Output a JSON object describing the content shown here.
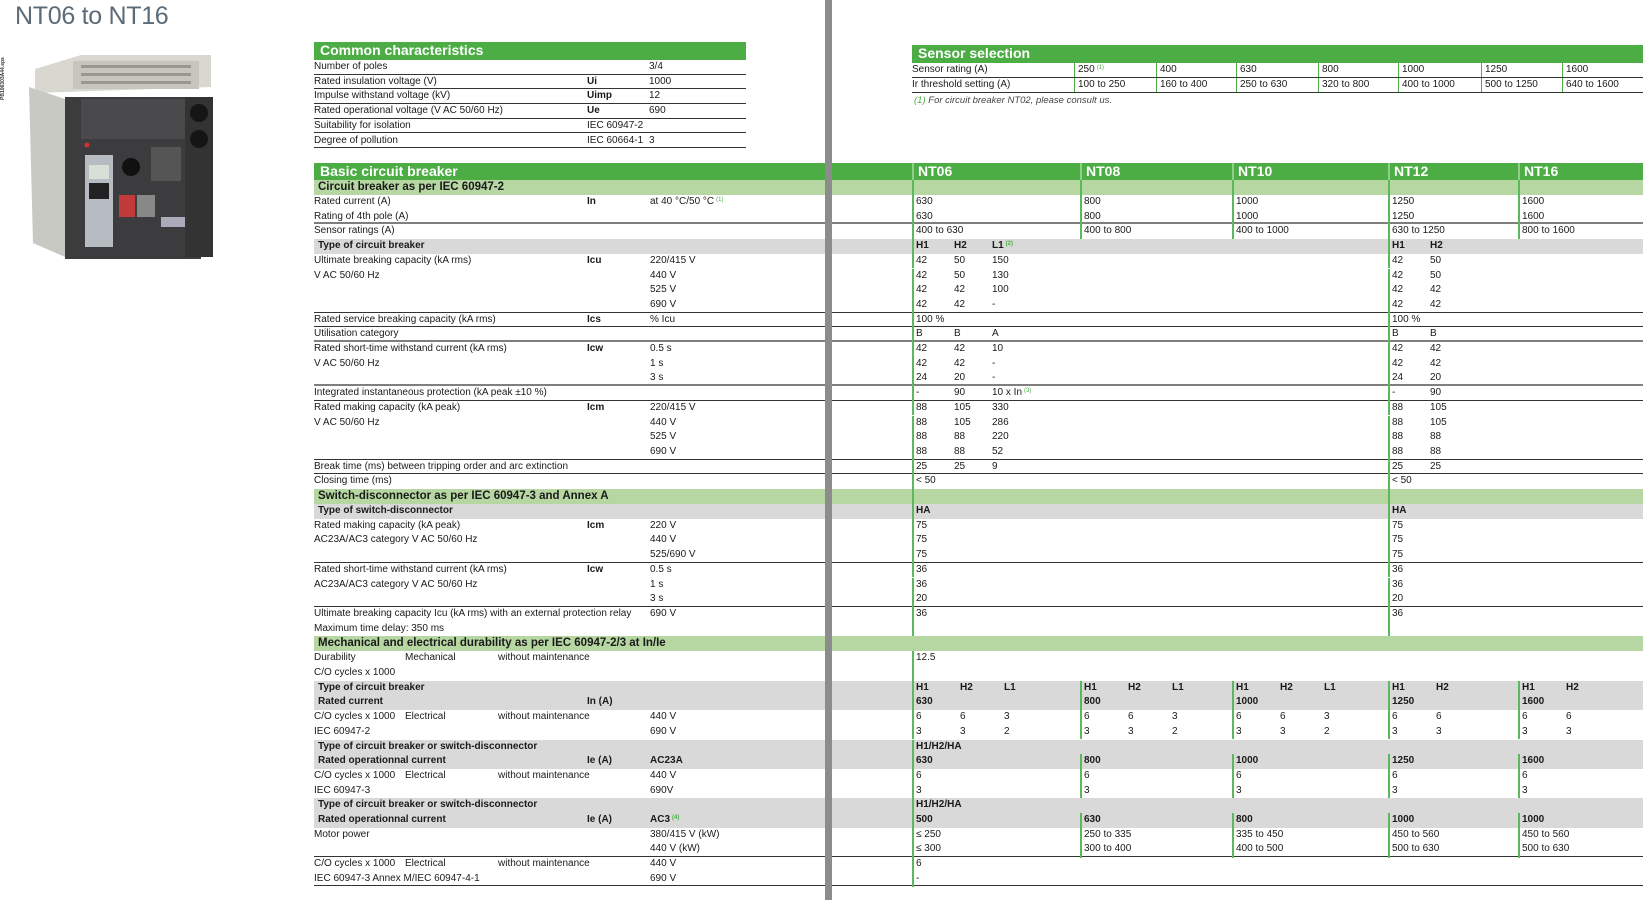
{
  "title": "NT06 to NT16",
  "photo_code": "PB106303A44.eps",
  "common": {
    "heading": "Common characteristics",
    "rows": [
      {
        "label": "Number of poles",
        "sym": "",
        "val": "3/4"
      },
      {
        "label": "Rated insulation voltage (V)",
        "sym": "Ui",
        "val": "1000"
      },
      {
        "label": "Impulse withstand voltage (kV)",
        "sym": "Uimp",
        "val": "12"
      },
      {
        "label": "Rated operational voltage (V AC 50/60 Hz)",
        "sym": "Ue",
        "val": "690"
      },
      {
        "label": "Suitability for isolation",
        "sym": "IEC 60947-2",
        "val": ""
      },
      {
        "label": "Degree of pollution",
        "sym": "IEC 60664-1",
        "val": "3"
      }
    ]
  },
  "sensor": {
    "heading": "Sensor selection",
    "rating_label": "Sensor rating (A)",
    "threshold_label": "Ir threshold setting (A)",
    "ratings": [
      {
        "t": "250",
        "sup": "(1)"
      },
      "400",
      "630",
      "800",
      "1000",
      "1250",
      "1600"
    ],
    "thresholds": [
      "100 to 250",
      "160 to 400",
      "250 to 630",
      "320 to 800",
      "400 to 1000",
      "500 to 1250",
      "640 to 1600"
    ],
    "footnote_ref": "(1)",
    "footnote": "For circuit breaker NT02, please consult us."
  },
  "colors": {
    "header_green": "#4cad44",
    "subheader_green": "#b6d7a2",
    "band_gray": "#d9d9d9",
    "gutter_gray": "#8c8c8c"
  },
  "rows": [
    {
      "k": "h",
      "c": {
        "label": "Basic circuit breaker"
      },
      "v": [
        [
          "NT06"
        ],
        [
          "NT08"
        ],
        [
          "NT10"
        ],
        [
          "NT12"
        ],
        [
          "NT16"
        ]
      ]
    },
    {
      "k": "s",
      "c": {
        "label": "Circuit breaker as per IEC 60947-2"
      },
      "v": [
        [],
        [],
        [],
        [],
        []
      ]
    },
    {
      "k": "d",
      "c": {
        "label": "Rated current (A)",
        "sym": "In",
        "cond": {
          "t": "at 40 °C/50 °C",
          "sup": "(1)"
        }
      },
      "v": [
        [
          "630"
        ],
        [
          "800"
        ],
        [
          "1000"
        ],
        [
          "1250"
        ],
        [
          "1600"
        ]
      ]
    },
    {
      "k": "d",
      "c": {
        "label": "Rating of 4th pole (A)"
      },
      "v": [
        [
          "630"
        ],
        [
          "800"
        ],
        [
          "1000"
        ],
        [
          "1250"
        ],
        [
          "1600"
        ]
      ],
      "r": "thick"
    },
    {
      "k": "d",
      "c": {
        "label": "Sensor ratings (A)"
      },
      "v": [
        [
          "400 to 630"
        ],
        [
          "400 to 800"
        ],
        [
          "400 to 1000"
        ],
        [
          "630 to 1250"
        ],
        [
          "800 to 1600"
        ]
      ]
    },
    {
      "k": "t",
      "c": {
        "label": "Type of circuit breaker"
      },
      "v": [
        [
          "H1",
          "H2",
          {
            "t": "L1",
            "sup": "(2)"
          }
        ],
        null,
        null,
        [
          "H1",
          "H2"
        ],
        null
      ]
    },
    {
      "k": "d",
      "c": {
        "label": "Ultimate breaking capacity (kA rms)",
        "sym": "Icu",
        "cond": "220/415 V"
      },
      "v": [
        [
          "42",
          "50",
          "150"
        ],
        null,
        null,
        [
          "42",
          "50"
        ],
        null
      ]
    },
    {
      "k": "d",
      "c": {
        "label": "V AC 50/60 Hz",
        "cond": "440 V"
      },
      "v": [
        [
          "42",
          "50",
          "130"
        ],
        null,
        null,
        [
          "42",
          "50"
        ],
        null
      ]
    },
    {
      "k": "d",
      "c": {
        "cond": "525 V"
      },
      "v": [
        [
          "42",
          "42",
          "100"
        ],
        null,
        null,
        [
          "42",
          "42"
        ],
        null
      ]
    },
    {
      "k": "d",
      "c": {
        "cond": "690 V"
      },
      "v": [
        [
          "42",
          "42",
          "-"
        ],
        null,
        null,
        [
          "42",
          "42"
        ],
        null
      ],
      "r": "thin"
    },
    {
      "k": "d",
      "c": {
        "label": "Rated service breaking capacity (kA rms)",
        "sym": "Ics",
        "cond": "% Icu"
      },
      "v": [
        [
          "100 %"
        ],
        null,
        null,
        [
          "100 %"
        ],
        null
      ],
      "r": "thin"
    },
    {
      "k": "d",
      "c": {
        "label": "Utilisation category"
      },
      "v": [
        [
          "B",
          "B",
          "A"
        ],
        null,
        null,
        [
          "B",
          "B"
        ],
        null
      ],
      "r": "thick"
    },
    {
      "k": "d",
      "c": {
        "label": "Rated short-time withstand current (kA rms)",
        "sym": "Icw",
        "cond": "0.5 s"
      },
      "v": [
        [
          "42",
          "42",
          "10"
        ],
        null,
        null,
        [
          "42",
          "42"
        ],
        null
      ]
    },
    {
      "k": "d",
      "c": {
        "label": "V AC 50/60 Hz",
        "cond": "1 s"
      },
      "v": [
        [
          "42",
          "42",
          "-"
        ],
        null,
        null,
        [
          "42",
          "42"
        ],
        null
      ]
    },
    {
      "k": "d",
      "c": {
        "cond": "3 s"
      },
      "v": [
        [
          "24",
          "20",
          "-"
        ],
        null,
        null,
        [
          "24",
          "20"
        ],
        null
      ],
      "r": "thick"
    },
    {
      "k": "d",
      "c": {
        "label": "Integrated instantaneous protection (kA peak ±10 %)"
      },
      "v": [
        [
          "-",
          "90",
          {
            "t": "10 x In",
            "sup": "(3)"
          }
        ],
        null,
        null,
        [
          "-",
          "90"
        ],
        null
      ],
      "r": "thin"
    },
    {
      "k": "d",
      "c": {
        "label": "Rated making capacity (kA peak)",
        "sym": "Icm",
        "cond": "220/415 V"
      },
      "v": [
        [
          "88",
          "105",
          "330"
        ],
        null,
        null,
        [
          "88",
          "105"
        ],
        null
      ]
    },
    {
      "k": "d",
      "c": {
        "label": "V AC 50/60 Hz",
        "cond": "440 V"
      },
      "v": [
        [
          "88",
          "105",
          "286"
        ],
        null,
        null,
        [
          "88",
          "105"
        ],
        null
      ]
    },
    {
      "k": "d",
      "c": {
        "cond": "525 V"
      },
      "v": [
        [
          "88",
          "88",
          "220"
        ],
        null,
        null,
        [
          "88",
          "88"
        ],
        null
      ]
    },
    {
      "k": "d",
      "c": {
        "cond": "690 V"
      },
      "v": [
        [
          "88",
          "88",
          "52"
        ],
        null,
        null,
        [
          "88",
          "88"
        ],
        null
      ],
      "r": "thin"
    },
    {
      "k": "d",
      "c": {
        "label": "Break time (ms) between tripping order and arc extinction"
      },
      "v": [
        [
          "25",
          "25",
          "9"
        ],
        null,
        null,
        [
          "25",
          "25"
        ],
        null
      ],
      "r": "thin"
    },
    {
      "k": "d",
      "c": {
        "label": "Closing time (ms)"
      },
      "v": [
        [
          "< 50"
        ],
        null,
        null,
        [
          "< 50"
        ],
        null
      ]
    },
    {
      "k": "s",
      "c": {
        "label": "Switch-disconnector as per IEC 60947-3 and Annex A"
      },
      "v": [
        [],
        null,
        null,
        [],
        null
      ]
    },
    {
      "k": "t",
      "c": {
        "label": "Type of switch-disconnector"
      },
      "v": [
        [
          "HA"
        ],
        null,
        null,
        [
          "HA"
        ],
        null
      ]
    },
    {
      "k": "d",
      "c": {
        "label": "Rated making capacity (kA peak)",
        "sym": "Icm",
        "cond": "220 V"
      },
      "v": [
        [
          "75"
        ],
        null,
        null,
        [
          "75"
        ],
        null
      ]
    },
    {
      "k": "d",
      "c": {
        "label": "AC23A/AC3 category V AC 50/60 Hz",
        "cond": "440 V"
      },
      "v": [
        [
          "75"
        ],
        null,
        null,
        [
          "75"
        ],
        null
      ]
    },
    {
      "k": "d",
      "c": {
        "cond": "525/690 V"
      },
      "v": [
        [
          "75"
        ],
        null,
        null,
        [
          "75"
        ],
        null
      ],
      "r": "thin"
    },
    {
      "k": "d",
      "c": {
        "label": "Rated short-time withstand current (kA rms)",
        "sym": "Icw",
        "cond": "0.5 s"
      },
      "v": [
        [
          "36"
        ],
        null,
        null,
        [
          "36"
        ],
        null
      ]
    },
    {
      "k": "d",
      "c": {
        "label": "AC23A/AC3 category V AC 50/60 Hz",
        "cond": "1 s"
      },
      "v": [
        [
          "36"
        ],
        null,
        null,
        [
          "36"
        ],
        null
      ]
    },
    {
      "k": "d",
      "c": {
        "cond": "3 s"
      },
      "v": [
        [
          "20"
        ],
        null,
        null,
        [
          "20"
        ],
        null
      ],
      "r": "thin"
    },
    {
      "k": "d",
      "c": {
        "label": "Ultimate breaking capacity Icu (kA rms) with an external protection relay",
        "cond": "690 V"
      },
      "v": [
        [
          "36"
        ],
        null,
        null,
        [
          "36"
        ],
        null
      ]
    },
    {
      "k": "d",
      "c": {
        "label": "Maximum time delay: 350 ms"
      },
      "v": [
        [],
        null,
        null,
        [],
        null
      ]
    },
    {
      "k": "s",
      "c": {
        "label": "Mechanical and electrical durability as per IEC 60947-2/3 at In/Ie"
      },
      "v": [
        null,
        null,
        null,
        null,
        null
      ]
    },
    {
      "k": "d",
      "c": {
        "label": "Durability",
        "mid": "Mechanical",
        "mid2": "without maintenance"
      },
      "v": [
        [
          "12.5"
        ],
        null,
        null,
        null,
        null
      ]
    },
    {
      "k": "d",
      "c": {
        "label": "C/O cycles x 1000"
      },
      "v": [
        [],
        null,
        null,
        null,
        null
      ]
    },
    {
      "k": "t",
      "c": {
        "label": "Type of circuit breaker"
      },
      "v": [
        [
          "H1",
          "H2",
          "L1"
        ],
        [
          "H1",
          "H2",
          "L1"
        ],
        [
          "H1",
          "H2",
          "L1"
        ],
        [
          "H1",
          "H2"
        ],
        [
          "H1",
          "H2"
        ]
      ],
      "r": "part"
    },
    {
      "k": "t",
      "c": {
        "label": "Rated current",
        "sym": "In (A)"
      },
      "v": [
        [
          "630"
        ],
        [
          "800"
        ],
        [
          "1000"
        ],
        [
          "1250"
        ],
        [
          "1600"
        ]
      ]
    },
    {
      "k": "d",
      "c": {
        "label": "C/O cycles x 1000",
        "mid": "Electrical",
        "mid2": "without maintenance",
        "cond": "440 V"
      },
      "v": [
        [
          "6",
          "6",
          "3"
        ],
        [
          "6",
          "6",
          "3"
        ],
        [
          "6",
          "6",
          "3"
        ],
        [
          "6",
          "6"
        ],
        [
          "6",
          "6"
        ]
      ]
    },
    {
      "k": "d",
      "c": {
        "label": "IEC 60947-2",
        "cond": "690 V"
      },
      "v": [
        [
          "3",
          "3",
          "2"
        ],
        [
          "3",
          "3",
          "2"
        ],
        [
          "3",
          "3",
          "2"
        ],
        [
          "3",
          "3"
        ],
        [
          "3",
          "3"
        ]
      ]
    },
    {
      "k": "t",
      "c": {
        "label": "Type of circuit breaker or switch-disconnector"
      },
      "v": [
        [
          "H1/H2/HA"
        ],
        null,
        null,
        null,
        null
      ],
      "r": "part"
    },
    {
      "k": "t",
      "c": {
        "label": "Rated operationnal current",
        "sym": "Ie (A)",
        "cond": "AC23A"
      },
      "v": [
        [
          "630"
        ],
        [
          "800"
        ],
        [
          "1000"
        ],
        [
          "1250"
        ],
        [
          "1600"
        ]
      ]
    },
    {
      "k": "d",
      "c": {
        "label": "C/O cycles x 1000",
        "mid": "Electrical",
        "mid2": "without maintenance",
        "cond": "440 V"
      },
      "v": [
        [
          "6"
        ],
        [
          "6"
        ],
        [
          "6"
        ],
        [
          "6"
        ],
        [
          "6"
        ]
      ]
    },
    {
      "k": "d",
      "c": {
        "label": "IEC 60947-3",
        "cond": "690V"
      },
      "v": [
        [
          "3"
        ],
        [
          "3"
        ],
        [
          "3"
        ],
        [
          "3"
        ],
        [
          "3"
        ]
      ]
    },
    {
      "k": "t",
      "c": {
        "label": "Type of circuit breaker or switch-disconnector"
      },
      "v": [
        [
          "H1/H2/HA"
        ],
        null,
        null,
        null,
        null
      ],
      "r": "part"
    },
    {
      "k": "t",
      "c": {
        "label": "Rated operationnal current",
        "sym": "Ie (A)",
        "cond": {
          "t": "AC3",
          "sup": "(4)"
        }
      },
      "v": [
        [
          "500"
        ],
        [
          "630"
        ],
        [
          "800"
        ],
        [
          "1000"
        ],
        [
          "1000"
        ]
      ]
    },
    {
      "k": "d",
      "c": {
        "label": "Motor power",
        "cond": "380/415 V (kW)"
      },
      "v": [
        [
          "≤ 250"
        ],
        [
          "250 to 335"
        ],
        [
          "335 to 450"
        ],
        [
          "450 to 560"
        ],
        [
          "450 to 560"
        ]
      ]
    },
    {
      "k": "d",
      "c": {
        "cond": "440 V (kW)"
      },
      "v": [
        [
          "≤ 300"
        ],
        [
          "300 to 400"
        ],
        [
          "400 to 500"
        ],
        [
          "500 to 630"
        ],
        [
          "500 to 630"
        ]
      ],
      "r": "thin"
    },
    {
      "k": "d",
      "c": {
        "label": "C/O cycles x 1000",
        "mid": "Electrical",
        "mid2": "without maintenance",
        "cond": "440 V"
      },
      "v": [
        [
          "6"
        ],
        null,
        null,
        null,
        null
      ]
    },
    {
      "k": "d",
      "c": {
        "label": "IEC 60947-3 Annex M/IEC 60947-4-1",
        "cond": "690 V"
      },
      "v": [
        [
          "-"
        ],
        null,
        null,
        null,
        null
      ],
      "r": "thin"
    }
  ]
}
